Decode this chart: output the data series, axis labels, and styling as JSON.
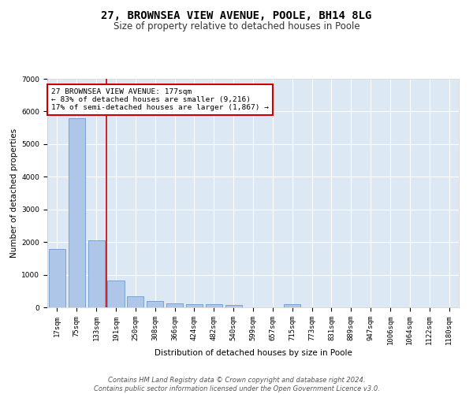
{
  "title": "27, BROWNSEA VIEW AVENUE, POOLE, BH14 8LG",
  "subtitle": "Size of property relative to detached houses in Poole",
  "xlabel": "Distribution of detached houses by size in Poole",
  "ylabel": "Number of detached properties",
  "bar_labels": [
    "17sqm",
    "75sqm",
    "133sqm",
    "191sqm",
    "250sqm",
    "308sqm",
    "366sqm",
    "424sqm",
    "482sqm",
    "540sqm",
    "599sqm",
    "657sqm",
    "715sqm",
    "773sqm",
    "831sqm",
    "889sqm",
    "947sqm",
    "1006sqm",
    "1064sqm",
    "1122sqm",
    "1180sqm"
  ],
  "bar_values": [
    1780,
    5800,
    2060,
    820,
    340,
    195,
    120,
    100,
    90,
    75,
    0,
    0,
    90,
    0,
    0,
    0,
    0,
    0,
    0,
    0,
    0
  ],
  "bar_color": "#aec6e8",
  "bar_edge_color": "#5a8fc2",
  "vline_color": "#cc0000",
  "vline_pos": 2.5,
  "annotation_text": "27 BROWNSEA VIEW AVENUE: 177sqm\n← 83% of detached houses are smaller (9,216)\n17% of semi-detached houses are larger (1,867) →",
  "annotation_box_color": "#ffffff",
  "annotation_box_edge_color": "#cc0000",
  "ylim": [
    0,
    7000
  ],
  "yticks": [
    0,
    1000,
    2000,
    3000,
    4000,
    5000,
    6000,
    7000
  ],
  "background_color": "#dce9f5",
  "grid_color": "#ffffff",
  "footer_line1": "Contains HM Land Registry data © Crown copyright and database right 2024.",
  "footer_line2": "Contains public sector information licensed under the Open Government Licence v3.0.",
  "title_fontsize": 10,
  "subtitle_fontsize": 8.5,
  "axis_label_fontsize": 7.5,
  "tick_fontsize": 6.5,
  "annotation_fontsize": 6.8,
  "footer_fontsize": 6.0
}
